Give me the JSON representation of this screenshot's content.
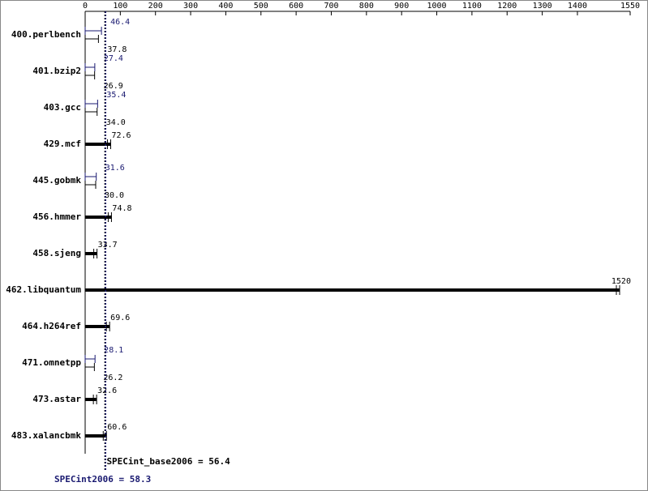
{
  "chart_data": {
    "type": "bar",
    "categories": [
      "400.perlbench",
      "401.bzip2",
      "403.gcc",
      "429.mcf",
      "445.gobmk",
      "456.hmmer",
      "458.sjeng",
      "462.libquantum",
      "464.h264ref",
      "471.omnetpp",
      "473.astar",
      "483.xalancbmk"
    ],
    "series": [
      {
        "color": "#000000",
        "values": [
          37.8,
          26.9,
          34.0,
          72.6,
          30.0,
          74.8,
          33.7,
          1520,
          69.6,
          26.2,
          32.6,
          60.6
        ],
        "value_labels": [
          "37.8",
          "26.9",
          "34.0",
          "72.6",
          "30.0",
          "74.8",
          "33.7",
          "1520",
          "69.6",
          "26.2",
          "32.6",
          "60.6"
        ]
      },
      {
        "color": "#191970",
        "values": [
          46.4,
          27.4,
          35.4,
          null,
          31.6,
          null,
          null,
          null,
          null,
          28.1,
          null,
          null
        ]
      }
    ],
    "reference_lines": [
      {
        "label": "SPECint_base2006 = 56.4",
        "value": 56.4,
        "color": "#000000"
      },
      {
        "label": "SPECint2006 = 58.3",
        "value": 58.3,
        "color": "#191970"
      }
    ],
    "xlim": [
      0,
      1550
    ],
    "xticks": [
      0,
      100,
      200,
      300,
      400,
      500,
      600,
      700,
      800,
      900,
      1000,
      1100,
      1200,
      1300,
      1400,
      1550
    ]
  }
}
